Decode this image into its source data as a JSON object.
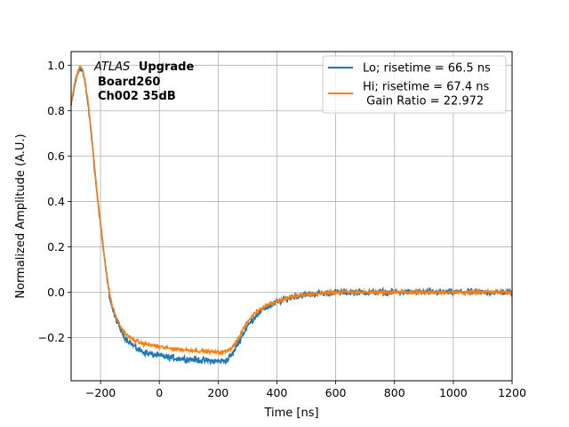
{
  "chart_data": {
    "type": "line",
    "title": "",
    "xlabel": "Time [ns]",
    "ylabel": "Normalized Amplitude (A.U.)",
    "xlim": [
      -300,
      1200
    ],
    "ylim": [
      -0.39,
      1.06
    ],
    "xticks": [
      -200,
      0,
      200,
      400,
      600,
      800,
      1000,
      1200
    ],
    "yticks": [
      -0.2,
      0.0,
      0.2,
      0.4,
      0.6,
      0.8,
      1.0
    ],
    "xtick_labels": [
      "−200",
      "0",
      "200",
      "400",
      "600",
      "800",
      "1000",
      "1200"
    ],
    "ytick_labels": [
      "−0.2",
      "0.0",
      "0.2",
      "0.4",
      "0.6",
      "0.8",
      "1.0"
    ],
    "grid": true,
    "legend_position": "top-right",
    "annotation": {
      "italic_part": "ATLAS",
      "bold_part": "Upgrade",
      "line2": "Board260",
      "line3": "Ch002 35dB"
    },
    "series": [
      {
        "name": "Lo; risetime = 66.5 ns",
        "color": "#1f77b4",
        "noise": 0.007,
        "x": [
          -300,
          -285,
          -270,
          -260,
          -250,
          -240,
          -230,
          -220,
          -210,
          -200,
          -190,
          -180,
          -170,
          -160,
          -150,
          -140,
          -130,
          -120,
          -110,
          -100,
          -80,
          -60,
          -40,
          -20,
          0,
          20,
          50,
          100,
          150,
          200,
          230,
          250,
          270,
          300,
          330,
          360,
          400,
          450,
          500,
          600,
          700,
          800,
          900,
          1000,
          1100,
          1200
        ],
        "y": [
          0.82,
          0.93,
          0.99,
          0.97,
          0.9,
          0.8,
          0.68,
          0.54,
          0.41,
          0.3,
          0.18,
          0.08,
          -0.01,
          -0.07,
          -0.11,
          -0.14,
          -0.17,
          -0.19,
          -0.21,
          -0.22,
          -0.245,
          -0.26,
          -0.27,
          -0.275,
          -0.28,
          -0.285,
          -0.29,
          -0.295,
          -0.3,
          -0.305,
          -0.3,
          -0.27,
          -0.22,
          -0.15,
          -0.1,
          -0.07,
          -0.045,
          -0.02,
          -0.01,
          0.0,
          0.0,
          0.0,
          0.0,
          0.0,
          0.0,
          0.0
        ]
      },
      {
        "name": "Hi; risetime = 67.4 ns\n Gain Ratio = 22.972",
        "color": "#ff7f0e",
        "noise": 0.004,
        "x": [
          -300,
          -285,
          -270,
          -260,
          -250,
          -240,
          -230,
          -220,
          -210,
          -200,
          -190,
          -180,
          -170,
          -160,
          -150,
          -140,
          -130,
          -120,
          -110,
          -100,
          -80,
          -60,
          -40,
          -20,
          0,
          20,
          50,
          100,
          150,
          200,
          230,
          250,
          270,
          300,
          330,
          360,
          400,
          450,
          500,
          600,
          700,
          800,
          900,
          1000,
          1100,
          1200
        ],
        "y": [
          0.83,
          0.94,
          1.0,
          0.98,
          0.91,
          0.81,
          0.69,
          0.55,
          0.42,
          0.31,
          0.19,
          0.09,
          0.0,
          -0.06,
          -0.1,
          -0.13,
          -0.155,
          -0.175,
          -0.19,
          -0.2,
          -0.215,
          -0.225,
          -0.23,
          -0.235,
          -0.24,
          -0.245,
          -0.25,
          -0.255,
          -0.26,
          -0.265,
          -0.26,
          -0.24,
          -0.2,
          -0.13,
          -0.085,
          -0.06,
          -0.04,
          -0.02,
          -0.01,
          0.0,
          0.0,
          0.0,
          0.0,
          0.0,
          0.0,
          0.0
        ]
      }
    ]
  }
}
